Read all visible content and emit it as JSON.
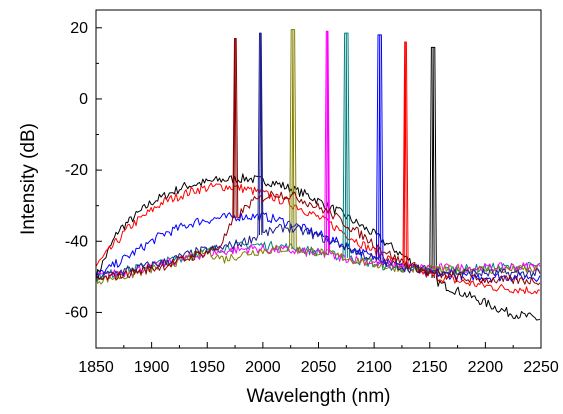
{
  "chart_data": {
    "type": "line",
    "xlabel": "Wavelength (nm)",
    "ylabel": "Intensity (dB)",
    "xlim": [
      1850,
      2250
    ],
    "ylim": [
      -70,
      25
    ],
    "x_ticks": [
      1850,
      1900,
      1950,
      2000,
      2050,
      2100,
      2150,
      2200,
      2250
    ],
    "y_ticks": [
      -60,
      -40,
      -20,
      0,
      20
    ],
    "x_tick_labels": [
      "1850",
      "1900",
      "1950",
      "2000",
      "2050",
      "2100",
      "2150",
      "2200",
      "2250"
    ],
    "y_tick_labels": [
      "-60",
      "-40",
      "-20",
      "0",
      "20"
    ],
    "grid": false,
    "legend": "none",
    "series": [
      {
        "color": "#000000",
        "points": [
          [
            1850,
            -50
          ],
          [
            1870,
            -37
          ],
          [
            1900,
            -29
          ],
          [
            1930,
            -24.5
          ],
          [
            1960,
            -22.8
          ],
          [
            1985,
            -22.3
          ],
          [
            2010,
            -23.5
          ],
          [
            2040,
            -27
          ],
          [
            2070,
            -32
          ],
          [
            2100,
            -38
          ],
          [
            2130,
            -45
          ],
          [
            2160,
            -52
          ],
          [
            2190,
            -56
          ],
          [
            2220,
            -60
          ],
          [
            2250,
            -62
          ]
        ],
        "peak": {
          "x": 2153,
          "y": 14.5
        }
      },
      {
        "color": "#ff0000",
        "points": [
          [
            1850,
            -47
          ],
          [
            1880,
            -36
          ],
          [
            1910,
            -29
          ],
          [
            1940,
            -25.5
          ],
          [
            1960,
            -24.5
          ],
          [
            1980,
            -25
          ],
          [
            2000,
            -26.5
          ],
          [
            2030,
            -30
          ],
          [
            2060,
            -35
          ],
          [
            2090,
            -41
          ],
          [
            2120,
            -46
          ],
          [
            2150,
            -49.5
          ],
          [
            2180,
            -51.5
          ],
          [
            2210,
            -53
          ],
          [
            2250,
            -54
          ]
        ],
        "peak": {
          "x": 2128,
          "y": 16
        }
      },
      {
        "color": "#0000ff",
        "points": [
          [
            1850,
            -50
          ],
          [
            1880,
            -44
          ],
          [
            1910,
            -38
          ],
          [
            1940,
            -34.5
          ],
          [
            1960,
            -33.5
          ],
          [
            1980,
            -33
          ],
          [
            2000,
            -33
          ],
          [
            2020,
            -34.5
          ],
          [
            2050,
            -38
          ],
          [
            2080,
            -42
          ],
          [
            2110,
            -46
          ],
          [
            2140,
            -48.5
          ],
          [
            2170,
            -49.5
          ],
          [
            2200,
            -50
          ],
          [
            2250,
            -50
          ]
        ],
        "peak": {
          "x": 2105,
          "y": 18
        }
      },
      {
        "color": "#008080",
        "points": [
          [
            1850,
            -50
          ],
          [
            1880,
            -48
          ],
          [
            1910,
            -46
          ],
          [
            1940,
            -43.5
          ],
          [
            1960,
            -42
          ],
          [
            1990,
            -41
          ],
          [
            2020,
            -41.5
          ],
          [
            2050,
            -43
          ],
          [
            2080,
            -45
          ],
          [
            2110,
            -47
          ],
          [
            2140,
            -48
          ],
          [
            2170,
            -48
          ],
          [
            2200,
            -47.5
          ],
          [
            2250,
            -47
          ]
        ],
        "peak": {
          "x": 2075,
          "y": 18.5
        }
      },
      {
        "color": "#ff00ff",
        "points": [
          [
            1850,
            -50
          ],
          [
            1880,
            -48.5
          ],
          [
            1910,
            -46.5
          ],
          [
            1940,
            -44
          ],
          [
            1960,
            -43
          ],
          [
            1990,
            -42
          ],
          [
            2020,
            -42.5
          ],
          [
            2050,
            -43.5
          ],
          [
            2080,
            -45
          ],
          [
            2110,
            -46.5
          ],
          [
            2140,
            -47.5
          ],
          [
            2170,
            -47.5
          ],
          [
            2200,
            -47.5
          ],
          [
            2250,
            -47
          ]
        ],
        "peak": {
          "x": 2058,
          "y": 19
        }
      },
      {
        "color": "#808000",
        "points": [
          [
            1850,
            -51
          ],
          [
            1880,
            -49.5
          ],
          [
            1910,
            -47
          ],
          [
            1935,
            -44.5
          ],
          [
            1950,
            -43
          ],
          [
            1965,
            -45
          ],
          [
            1990,
            -43
          ],
          [
            2020,
            -42
          ],
          [
            2050,
            -43
          ],
          [
            2080,
            -45
          ],
          [
            2110,
            -47
          ],
          [
            2140,
            -48
          ],
          [
            2170,
            -48
          ],
          [
            2200,
            -48
          ],
          [
            2250,
            -48
          ]
        ],
        "peak": {
          "x": 2027,
          "y": 19.5
        }
      },
      {
        "color": "#1e1e8c",
        "points": [
          [
            1850,
            -50
          ],
          [
            1880,
            -48
          ],
          [
            1910,
            -46
          ],
          [
            1940,
            -43
          ],
          [
            1960,
            -42
          ],
          [
            1980,
            -40.5
          ],
          [
            2000,
            -38
          ],
          [
            2020,
            -36
          ],
          [
            2040,
            -37.5
          ],
          [
            2070,
            -41
          ],
          [
            2100,
            -45
          ],
          [
            2130,
            -47.5
          ],
          [
            2160,
            -48.5
          ],
          [
            2200,
            -49
          ],
          [
            2250,
            -49
          ]
        ],
        "peak": {
          "x": 1998,
          "y": 18.5
        }
      },
      {
        "color": "#8b0000",
        "points": [
          [
            1850,
            -51
          ],
          [
            1880,
            -49
          ],
          [
            1910,
            -47
          ],
          [
            1940,
            -44
          ],
          [
            1960,
            -42
          ],
          [
            1975,
            -33.5
          ],
          [
            1990,
            -29
          ],
          [
            2010,
            -26.5
          ],
          [
            2030,
            -27.5
          ],
          [
            2060,
            -32
          ],
          [
            2090,
            -38.5
          ],
          [
            2120,
            -45
          ],
          [
            2150,
            -49
          ],
          [
            2180,
            -50.5
          ],
          [
            2220,
            -51
          ],
          [
            2250,
            -51
          ]
        ],
        "peak": {
          "x": 1975,
          "y": 17
        }
      }
    ]
  }
}
